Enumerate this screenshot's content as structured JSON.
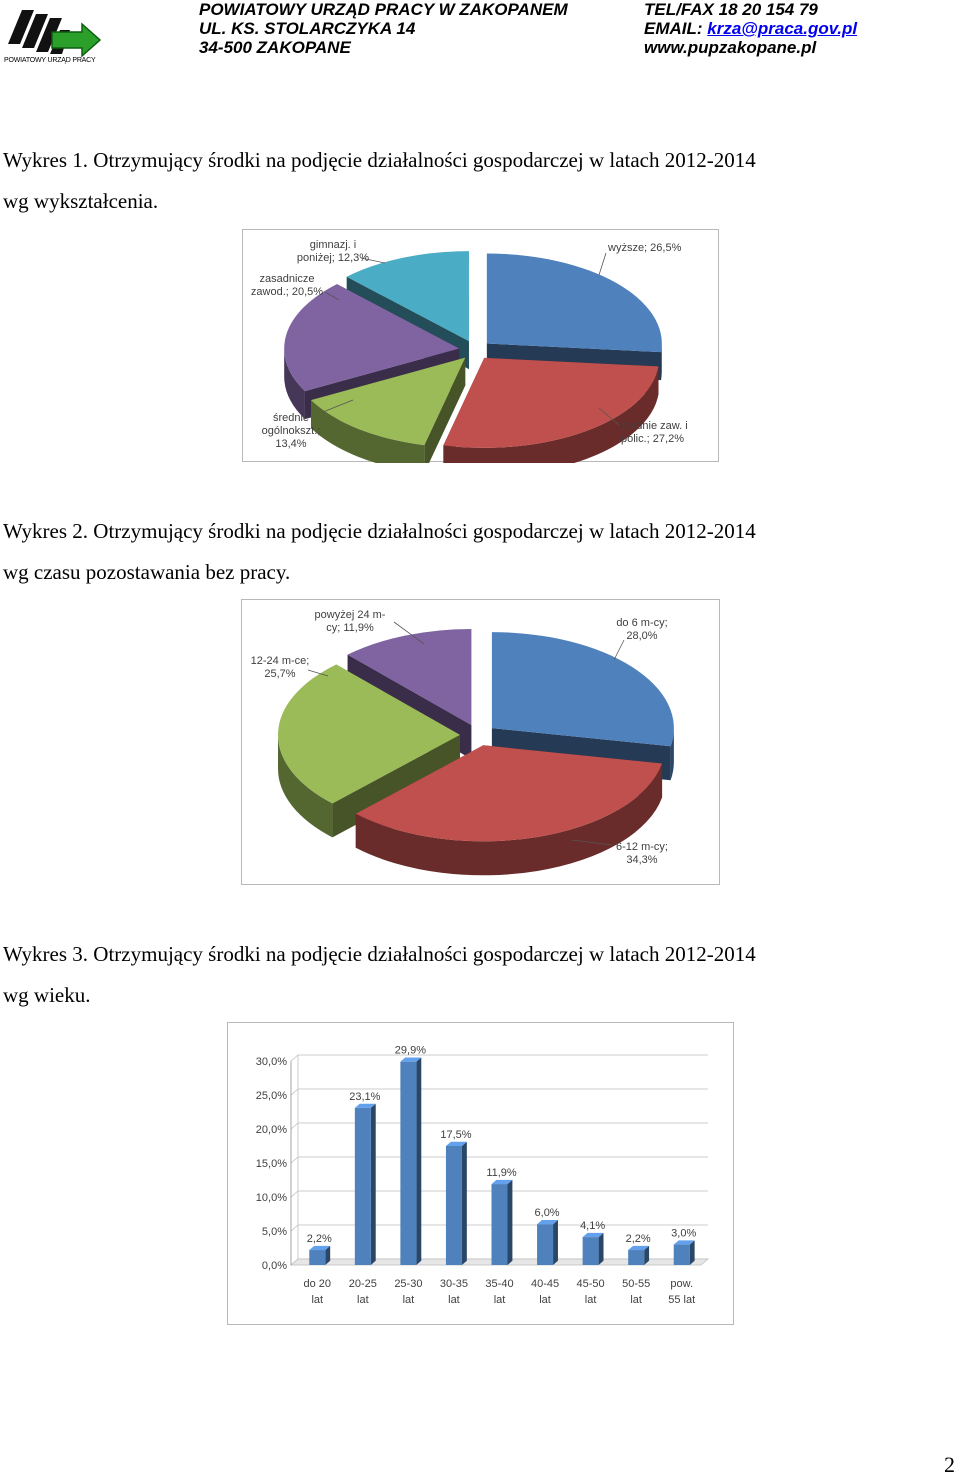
{
  "header": {
    "logo_text": "POWIATOWY URZĄD PRACY",
    "org_name": "POWIATOWY URZĄD PRACY W ZAKOPANEM",
    "street": "UL. KS. STOLARCZYKA 14",
    "city": "34-500 ZAKOPANE",
    "phone": "TEL/FAX 18 20 154 79",
    "email_label": "EMAIL: ",
    "email": "krza@praca.gov.pl",
    "website": "www.pupzakopane.pl"
  },
  "captions": {
    "c1_line1": "Wykres 1. Otrzymujący środki na podjęcie działalności gospodarczej w latach 2012-2014",
    "c1_line2": "wg wykształcenia.",
    "c2_line1": "Wykres 2. Otrzymujący środki na podjęcie działalności gospodarczej w latach 2012-2014",
    "c2_line2": "wg czasu pozostawania bez pracy.",
    "c3_line1": "Wykres 3. Otrzymujący środki na podjęcie działalności gospodarczej w latach 2012-2014",
    "c3_line2": "wg wieku."
  },
  "page_number": "2",
  "colors": {
    "blue": "#4f81bd",
    "red": "#c0504d",
    "green": "#9bbb59",
    "purple": "#8064a2",
    "aqua": "#4bacc6"
  },
  "chart_data": [
    {
      "type": "pie",
      "slices": [
        {
          "label_lines": [
            "wyższe; 26,5%"
          ],
          "value": 26.5,
          "color": "#4f81bd"
        },
        {
          "label_lines": [
            "średnie zaw. i",
            "polic.; 27,2%"
          ],
          "value": 27.2,
          "color": "#c0504d"
        },
        {
          "label_lines": [
            "średnie",
            "ogólnokszt.;",
            "13,4%"
          ],
          "value": 13.4,
          "color": "#9bbb59"
        },
        {
          "label_lines": [
            "zasadnicze",
            "zawod.; 20,5%"
          ],
          "value": 20.5,
          "color": "#8064a2"
        },
        {
          "label_lines": [
            "gimnazj. i",
            "poniżej; 12,3%"
          ],
          "value": 12.3,
          "color": "#4bacc6"
        }
      ]
    },
    {
      "type": "pie",
      "slices": [
        {
          "label_lines": [
            "do 6 m-cy;",
            "28,0%"
          ],
          "value": 28.0,
          "color": "#4f81bd"
        },
        {
          "label_lines": [
            "6-12 m-cy;",
            "34,3%"
          ],
          "value": 34.3,
          "color": "#c0504d"
        },
        {
          "label_lines": [
            "12-24 m-ce;",
            "25,7%"
          ],
          "value": 25.7,
          "color": "#9bbb59"
        },
        {
          "label_lines": [
            "powyżej 24 m-",
            "cy; 11,9%"
          ],
          "value": 11.9,
          "color": "#8064a2"
        }
      ]
    },
    {
      "type": "bar",
      "categories": [
        [
          "do 20",
          "lat"
        ],
        [
          "20-25",
          "lat"
        ],
        [
          "25-30",
          "lat"
        ],
        [
          "30-35",
          "lat"
        ],
        [
          "35-40",
          "lat"
        ],
        [
          "40-45",
          "lat"
        ],
        [
          "45-50",
          "lat"
        ],
        [
          "50-55",
          "lat"
        ],
        [
          "pow.",
          "55 lat"
        ]
      ],
      "values": [
        2.2,
        23.1,
        29.9,
        17.5,
        11.9,
        6.0,
        4.1,
        2.2,
        3.0
      ],
      "value_labels": [
        "2,2%",
        "23,1%",
        "29,9%",
        "17,5%",
        "11,9%",
        "6,0%",
        "4,1%",
        "2,2%",
        "3,0%"
      ],
      "yticks": [
        "0,0%",
        "5,0%",
        "10,0%",
        "15,0%",
        "20,0%",
        "25,0%",
        "30,0%"
      ],
      "ylim": [
        0,
        30
      ],
      "grid": true,
      "color": "#4f81bd"
    }
  ]
}
